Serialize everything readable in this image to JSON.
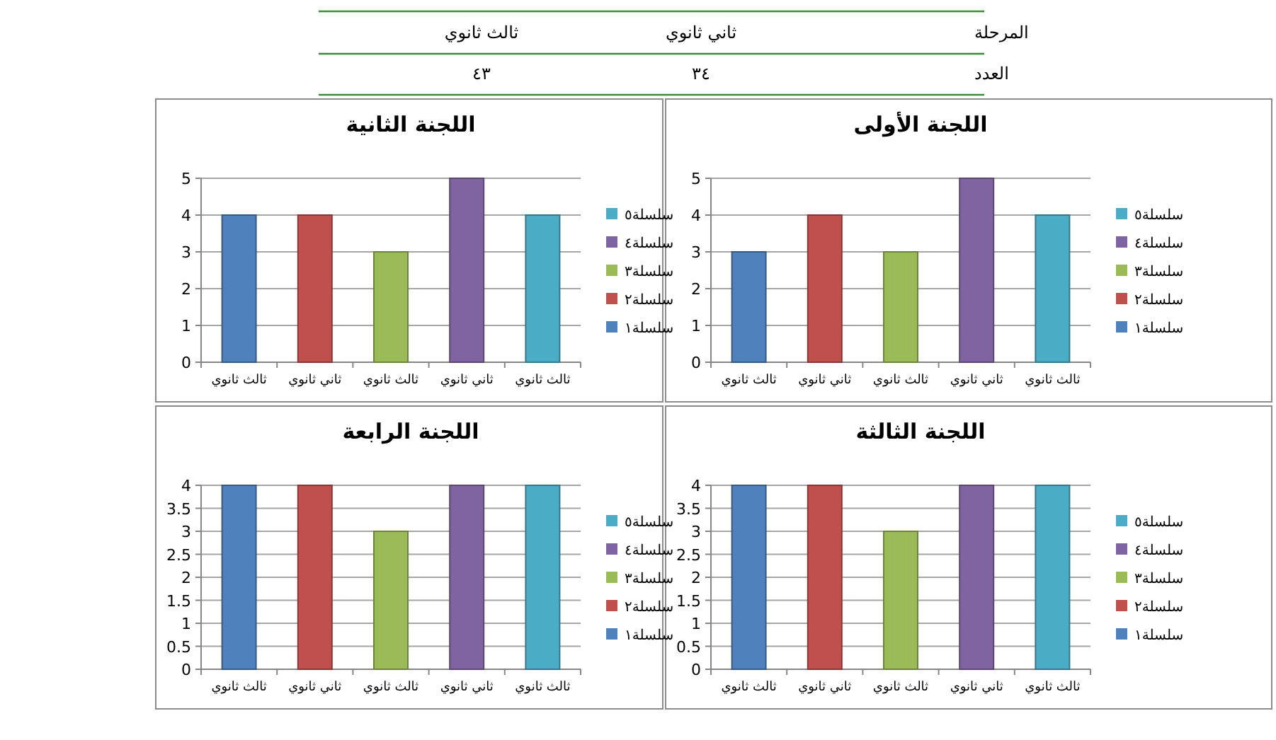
{
  "chart_data": [
    {
      "type": "other",
      "annotations": [
        "المرحلة",
        "ثاني ثانوي",
        "ثالث ثانوي",
        "العدد",
        "٣٤",
        "٤٣"
      ]
    },
    {
      "type": "bar",
      "title": "اللجنة الأولى",
      "categories": [
        "ثالث ثانوي",
        "ثاني ثانوي",
        "ثالث ثانوي",
        "ثاني ثانوي",
        "ثالث ثانوي"
      ],
      "ylim": [
        0,
        5
      ],
      "yticks": [
        0,
        1,
        2,
        3,
        4,
        5
      ],
      "grid": "y",
      "legend": "right",
      "series": [
        {
          "name": "سلسلة١",
          "color": "#4f81bd",
          "values": [
            3,
            null,
            null,
            null,
            null
          ]
        },
        {
          "name": "سلسلة٢",
          "color": "#c0504d",
          "values": [
            null,
            4,
            null,
            null,
            null
          ]
        },
        {
          "name": "سلسلة٣",
          "color": "#9bbb59",
          "values": [
            null,
            null,
            3,
            null,
            null
          ]
        },
        {
          "name": "سلسلة٤",
          "color": "#8064a2",
          "values": [
            null,
            null,
            null,
            5,
            null
          ]
        },
        {
          "name": "سلسلة٥",
          "color": "#4bacc6",
          "values": [
            null,
            null,
            null,
            null,
            4
          ]
        }
      ]
    },
    {
      "type": "bar",
      "title": "اللجنة الثانية",
      "categories": [
        "ثالث ثانوي",
        "ثاني ثانوي",
        "ثالث ثانوي",
        "ثاني ثانوي",
        "ثالث ثانوي"
      ],
      "ylim": [
        0,
        5
      ],
      "yticks": [
        0,
        1,
        2,
        3,
        4,
        5
      ],
      "grid": "y",
      "legend": "right",
      "series": [
        {
          "name": "سلسلة١",
          "color": "#4f81bd",
          "values": [
            4,
            null,
            null,
            null,
            null
          ]
        },
        {
          "name": "سلسلة٢",
          "color": "#c0504d",
          "values": [
            null,
            4,
            null,
            null,
            null
          ]
        },
        {
          "name": "سلسلة٣",
          "color": "#9bbb59",
          "values": [
            null,
            null,
            3,
            null,
            null
          ]
        },
        {
          "name": "سلسلة٤",
          "color": "#8064a2",
          "values": [
            null,
            null,
            null,
            5,
            null
          ]
        },
        {
          "name": "سلسلة٥",
          "color": "#4bacc6",
          "values": [
            null,
            null,
            null,
            null,
            4
          ]
        }
      ]
    },
    {
      "type": "bar",
      "title": "اللجنة الثالثة",
      "categories": [
        "ثالث ثانوي",
        "ثاني ثانوي",
        "ثالث ثانوي",
        "ثاني ثانوي",
        "ثالث ثانوي"
      ],
      "ylim": [
        0,
        4
      ],
      "yticks": [
        0,
        0.5,
        1,
        1.5,
        2,
        2.5,
        3,
        3.5,
        4
      ],
      "grid": "y",
      "legend": "right",
      "series": [
        {
          "name": "سلسلة١",
          "color": "#4f81bd",
          "values": [
            4,
            null,
            null,
            null,
            null
          ]
        },
        {
          "name": "سلسلة٢",
          "color": "#c0504d",
          "values": [
            null,
            4,
            null,
            null,
            null
          ]
        },
        {
          "name": "سلسلة٣",
          "color": "#9bbb59",
          "values": [
            null,
            null,
            3,
            null,
            null
          ]
        },
        {
          "name": "سلسلة٤",
          "color": "#8064a2",
          "values": [
            null,
            null,
            null,
            4,
            null
          ]
        },
        {
          "name": "سلسلة٥",
          "color": "#4bacc6",
          "values": [
            null,
            null,
            null,
            null,
            4
          ]
        }
      ]
    },
    {
      "type": "bar",
      "title": "اللجنة الرابعة",
      "categories": [
        "ثالث ثانوي",
        "ثاني ثانوي",
        "ثالث ثانوي",
        "ثاني ثانوي",
        "ثالث ثانوي"
      ],
      "ylim": [
        0,
        4
      ],
      "yticks": [
        0,
        0.5,
        1,
        1.5,
        2,
        2.5,
        3,
        3.5,
        4
      ],
      "grid": "y",
      "legend": "right",
      "series": [
        {
          "name": "سلسلة١",
          "color": "#4f81bd",
          "values": [
            4,
            null,
            null,
            null,
            null
          ]
        },
        {
          "name": "سلسلة٢",
          "color": "#c0504d",
          "values": [
            null,
            4,
            null,
            null,
            null
          ]
        },
        {
          "name": "سلسلة٣",
          "color": "#9bbb59",
          "values": [
            null,
            null,
            3,
            null,
            null
          ]
        },
        {
          "name": "سلسلة٤",
          "color": "#8064a2",
          "values": [
            null,
            null,
            null,
            4,
            null
          ]
        },
        {
          "name": "سلسلة٥",
          "color": "#4bacc6",
          "values": [
            null,
            null,
            null,
            null,
            4
          ]
        }
      ]
    }
  ]
}
